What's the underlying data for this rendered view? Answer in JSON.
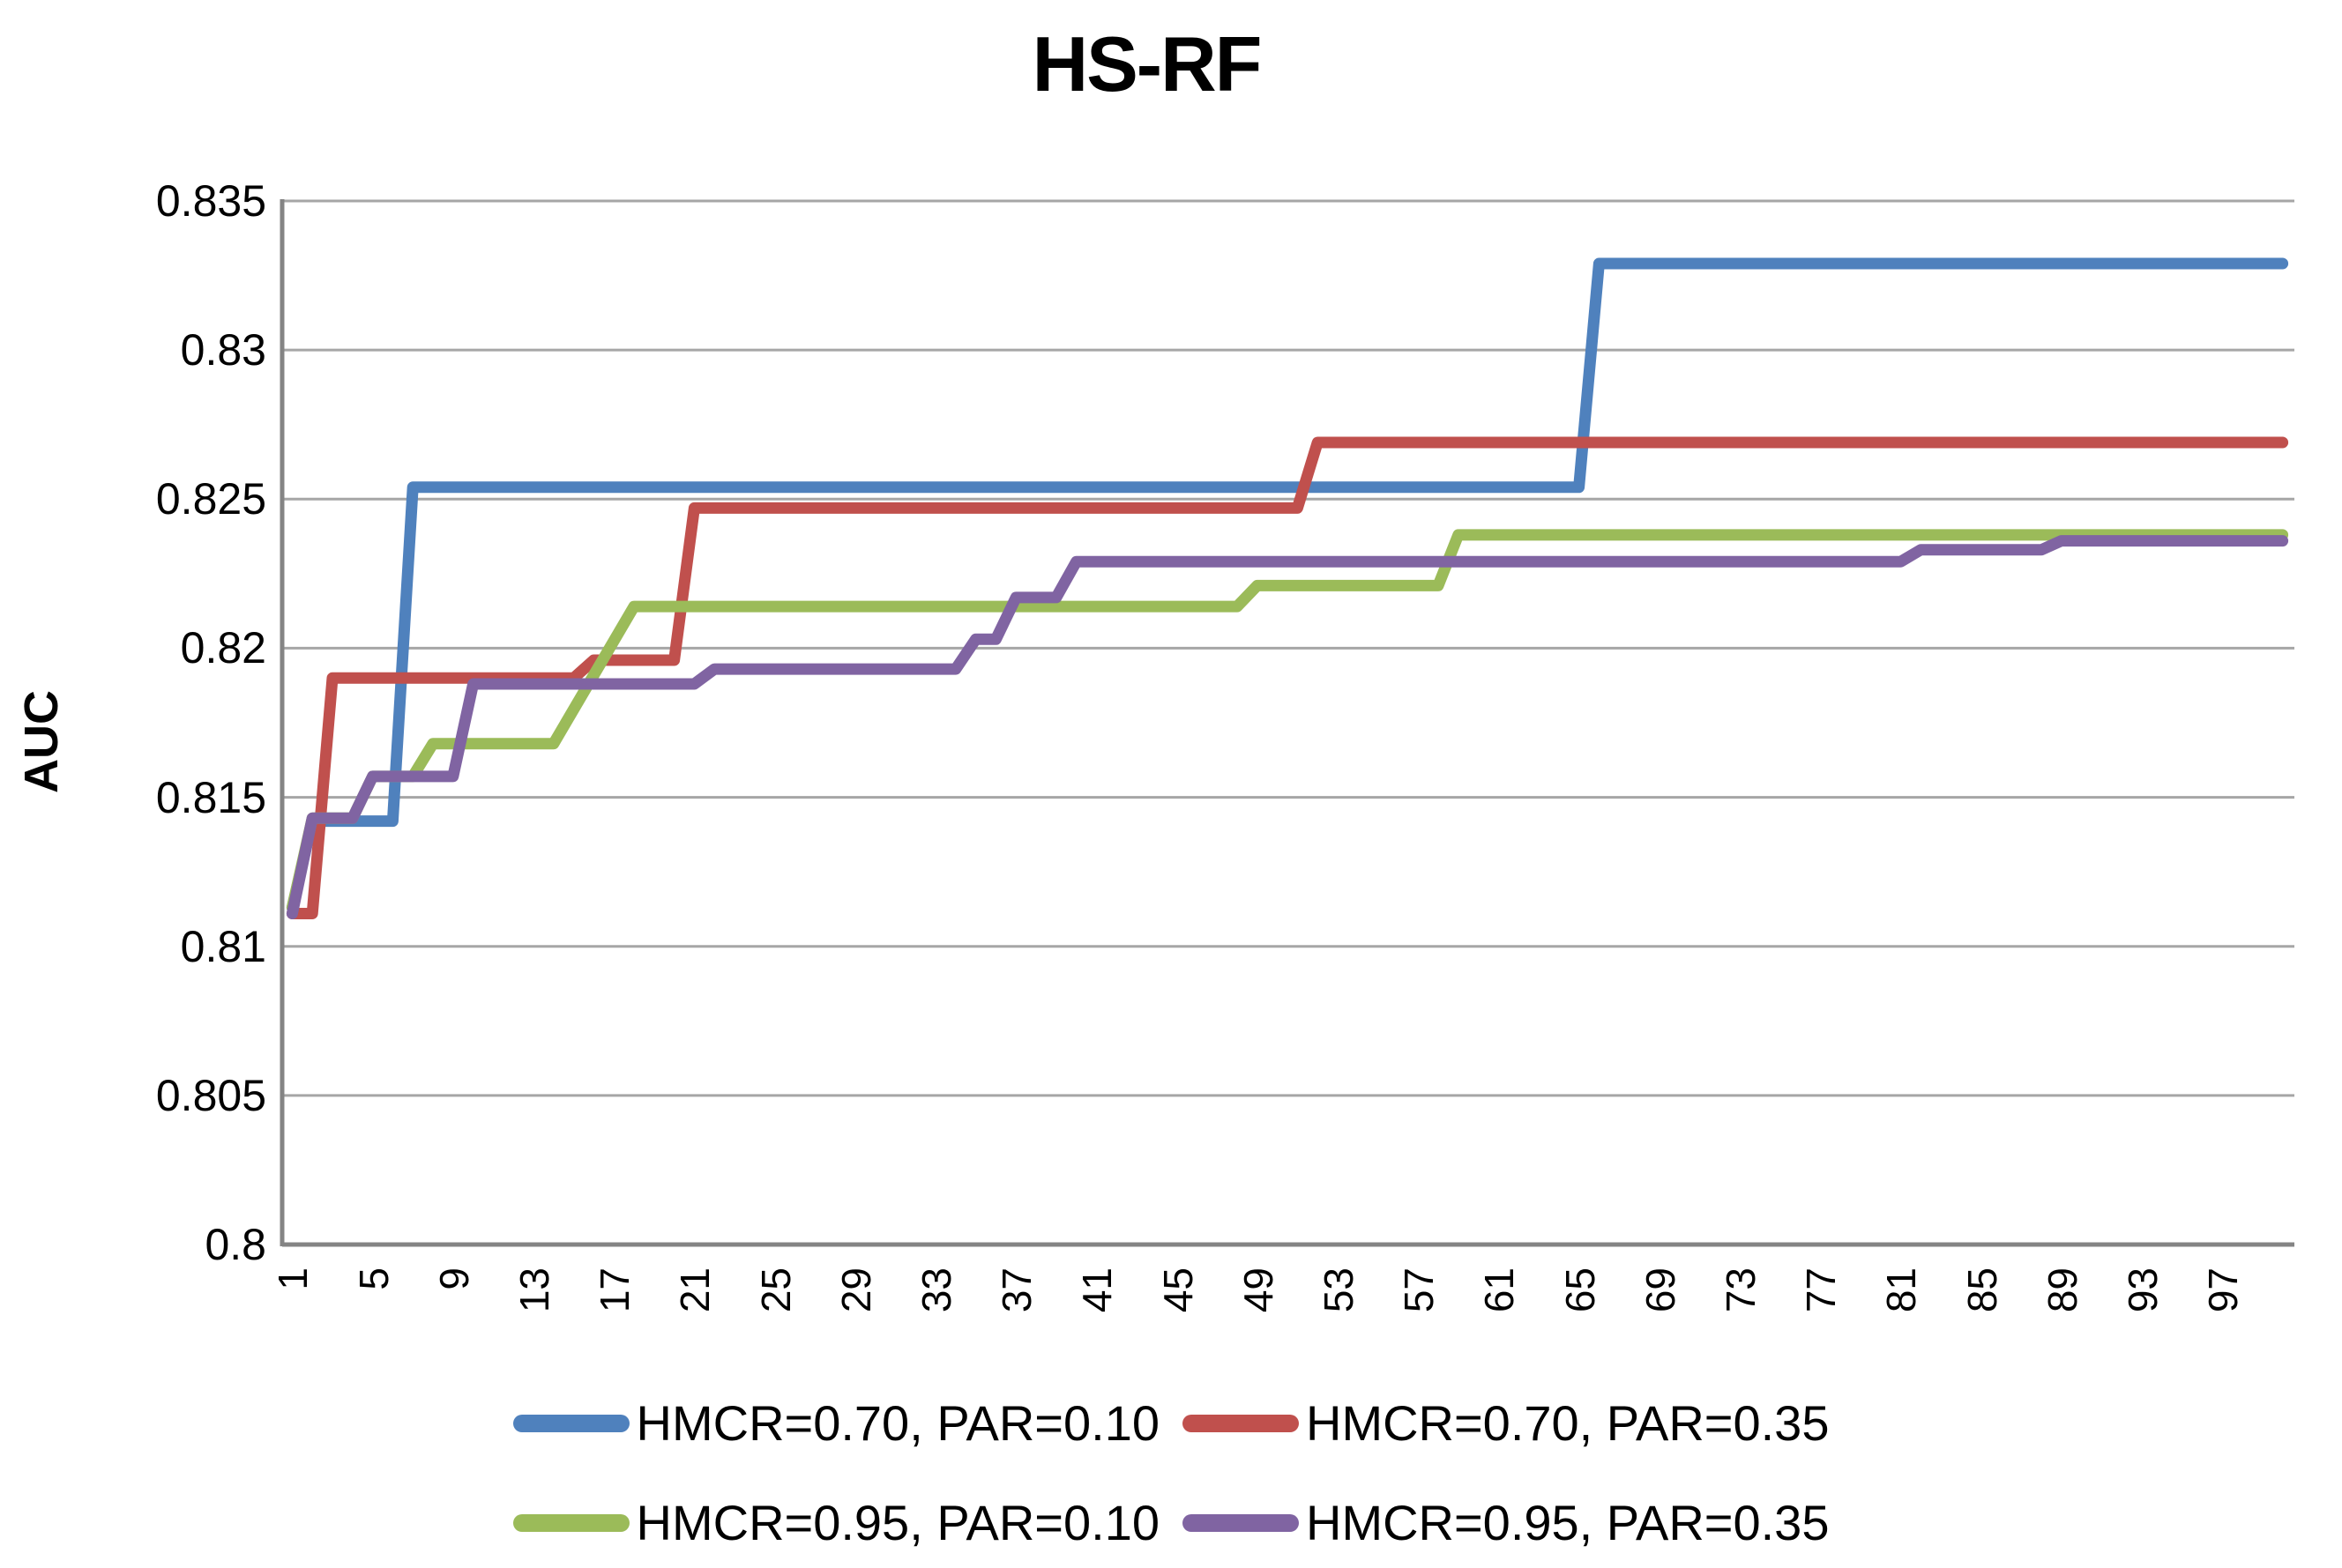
{
  "title": "HS-RF",
  "chart_data": {
    "type": "line",
    "title": "HS-RF",
    "xlabel": "",
    "ylabel": "AUC",
    "x_range": [
      1,
      100
    ],
    "x_tick_labels": [
      "1",
      "5",
      "9",
      "13",
      "17",
      "21",
      "25",
      "29",
      "33",
      "37",
      "41",
      "45",
      "49",
      "53",
      "57",
      "61",
      "65",
      "69",
      "73",
      "77",
      "81",
      "85",
      "89",
      "93",
      "97"
    ],
    "ylim": [
      0.8,
      0.835
    ],
    "y_ticks": [
      0.8,
      0.805,
      0.81,
      0.815,
      0.82,
      0.825,
      0.83,
      0.835
    ],
    "y_tick_labels": [
      "0.8",
      "0.805",
      "0.81",
      "0.815",
      "0.82",
      "0.825",
      "0.83",
      "0.835"
    ],
    "grid": true,
    "legend_position": "bottom",
    "note": "breakpoints are [iteration, AUC] vertices; values between consecutive vertices lie on straight connecting segments (step-like convergence curves)",
    "series": [
      {
        "name": "HMCR=0.70, PAR=0.10",
        "color": "#4F81BD",
        "breakpoints": [
          [
            1,
            0.8113
          ],
          [
            2,
            0.8142
          ],
          [
            6,
            0.8142
          ],
          [
            7,
            0.8254
          ],
          [
            65,
            0.8254
          ],
          [
            66,
            0.8329
          ],
          [
            100,
            0.8329
          ]
        ]
      },
      {
        "name": "HMCR=0.70, PAR=0.35",
        "color": "#C0504D",
        "breakpoints": [
          [
            1,
            0.8111
          ],
          [
            2,
            0.8111
          ],
          [
            3,
            0.819
          ],
          [
            15,
            0.819
          ],
          [
            16,
            0.8196
          ],
          [
            20,
            0.8196
          ],
          [
            21,
            0.8247
          ],
          [
            51,
            0.8247
          ],
          [
            52,
            0.8269
          ],
          [
            100,
            0.8269
          ]
        ]
      },
      {
        "name": "HMCR=0.95, PAR=0.10",
        "color": "#9BBB59",
        "breakpoints": [
          [
            1,
            0.8113
          ],
          [
            2,
            0.8143
          ],
          [
            4,
            0.8143
          ],
          [
            5,
            0.8157
          ],
          [
            7,
            0.8157
          ],
          [
            8,
            0.8168
          ],
          [
            14,
            0.8168
          ],
          [
            18,
            0.8214
          ],
          [
            48,
            0.8214
          ],
          [
            49,
            0.8221
          ],
          [
            58,
            0.8221
          ],
          [
            59,
            0.8238
          ],
          [
            100,
            0.8238
          ]
        ]
      },
      {
        "name": "HMCR=0.95, PAR=0.35",
        "color": "#8064A2",
        "breakpoints": [
          [
            1,
            0.8111
          ],
          [
            2,
            0.8143
          ],
          [
            4,
            0.8143
          ],
          [
            5,
            0.8157
          ],
          [
            9,
            0.8157
          ],
          [
            10,
            0.8188
          ],
          [
            21,
            0.8188
          ],
          [
            22,
            0.8193
          ],
          [
            34,
            0.8193
          ],
          [
            35,
            0.8203
          ],
          [
            36,
            0.8203
          ],
          [
            37,
            0.8217
          ],
          [
            39,
            0.8217
          ],
          [
            40,
            0.8229
          ],
          [
            81,
            0.8229
          ],
          [
            82,
            0.8233
          ],
          [
            88,
            0.8233
          ],
          [
            89,
            0.8236
          ],
          [
            100,
            0.8236
          ]
        ]
      }
    ],
    "colors": {
      "gridline": "#A6A6A6",
      "axis_line": "#848484",
      "text": "#000000",
      "background": "#FFFFFF"
    }
  }
}
